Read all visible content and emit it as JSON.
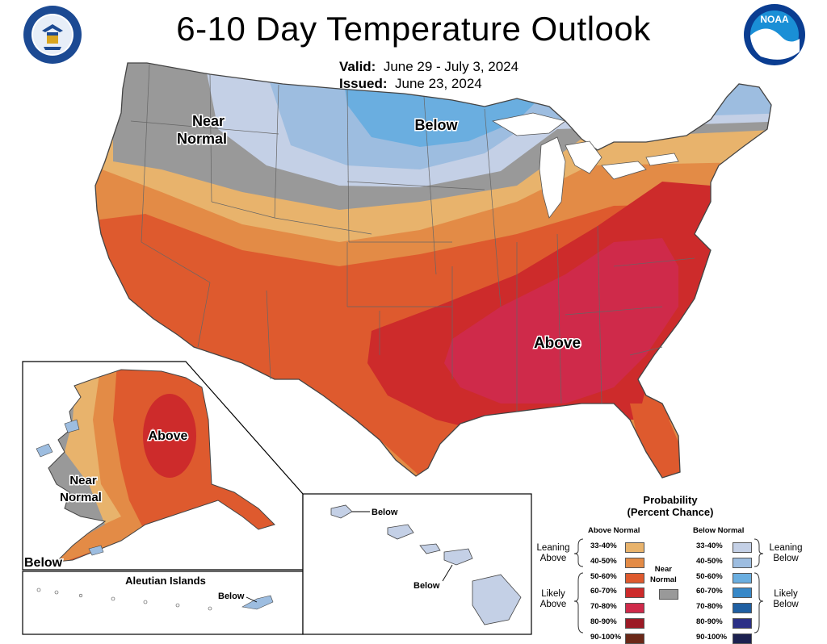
{
  "title": "6-10 Day Temperature Outlook",
  "valid_label": "Valid:",
  "valid_dates": "June 29 - July 3, 2024",
  "issued_label": "Issued:",
  "issued_date": "June 23, 2024",
  "logos": {
    "left": "department-of-commerce-seal",
    "right": "noaa-logo",
    "noaa_text": "NOAA"
  },
  "map_labels": {
    "conus_near_normal_1": "Near",
    "conus_near_normal_2": "Normal",
    "conus_below": "Below",
    "conus_above": "Above",
    "alaska_above": "Above",
    "alaska_near_normal_1": "Near",
    "alaska_near_normal_2": "Normal",
    "alaska_below": "Below",
    "aleutian_title": "Aleutian Islands",
    "aleutian_below": "Below",
    "hawaii_below_1": "Below",
    "hawaii_below_2": "Below"
  },
  "legend": {
    "title_1": "Probability",
    "title_2": "(Percent Chance)",
    "above_header": "Above Normal",
    "below_header": "Below Normal",
    "near_normal_1": "Near",
    "near_normal_2": "Normal",
    "leaning_above_1": "Leaning",
    "leaning_above_2": "Above",
    "likely_above_1": "Likely",
    "likely_above_2": "Above",
    "leaning_below_1": "Leaning",
    "leaning_below_2": "Below",
    "likely_below_1": "Likely",
    "likely_below_2": "Below",
    "above": [
      {
        "range": "33-40%",
        "color": "#e8b36c"
      },
      {
        "range": "40-50%",
        "color": "#e38b46"
      },
      {
        "range": "50-60%",
        "color": "#de5a2e"
      },
      {
        "range": "60-70%",
        "color": "#cd2b2b"
      },
      {
        "range": "70-80%",
        "color": "#cf2a4a"
      },
      {
        "range": "80-90%",
        "color": "#9c1b26"
      },
      {
        "range": "90-100%",
        "color": "#6b2818"
      }
    ],
    "below": [
      {
        "range": "33-40%",
        "color": "#c4d0e6"
      },
      {
        "range": "40-50%",
        "color": "#9dbde0"
      },
      {
        "range": "50-60%",
        "color": "#6aaee0"
      },
      {
        "range": "60-70%",
        "color": "#3788c8"
      },
      {
        "range": "70-80%",
        "color": "#1f5fa2"
      },
      {
        "range": "80-90%",
        "color": "#2b2f86"
      },
      {
        "range": "90-100%",
        "color": "#1c2150"
      }
    ],
    "near_color": "#999999"
  }
}
